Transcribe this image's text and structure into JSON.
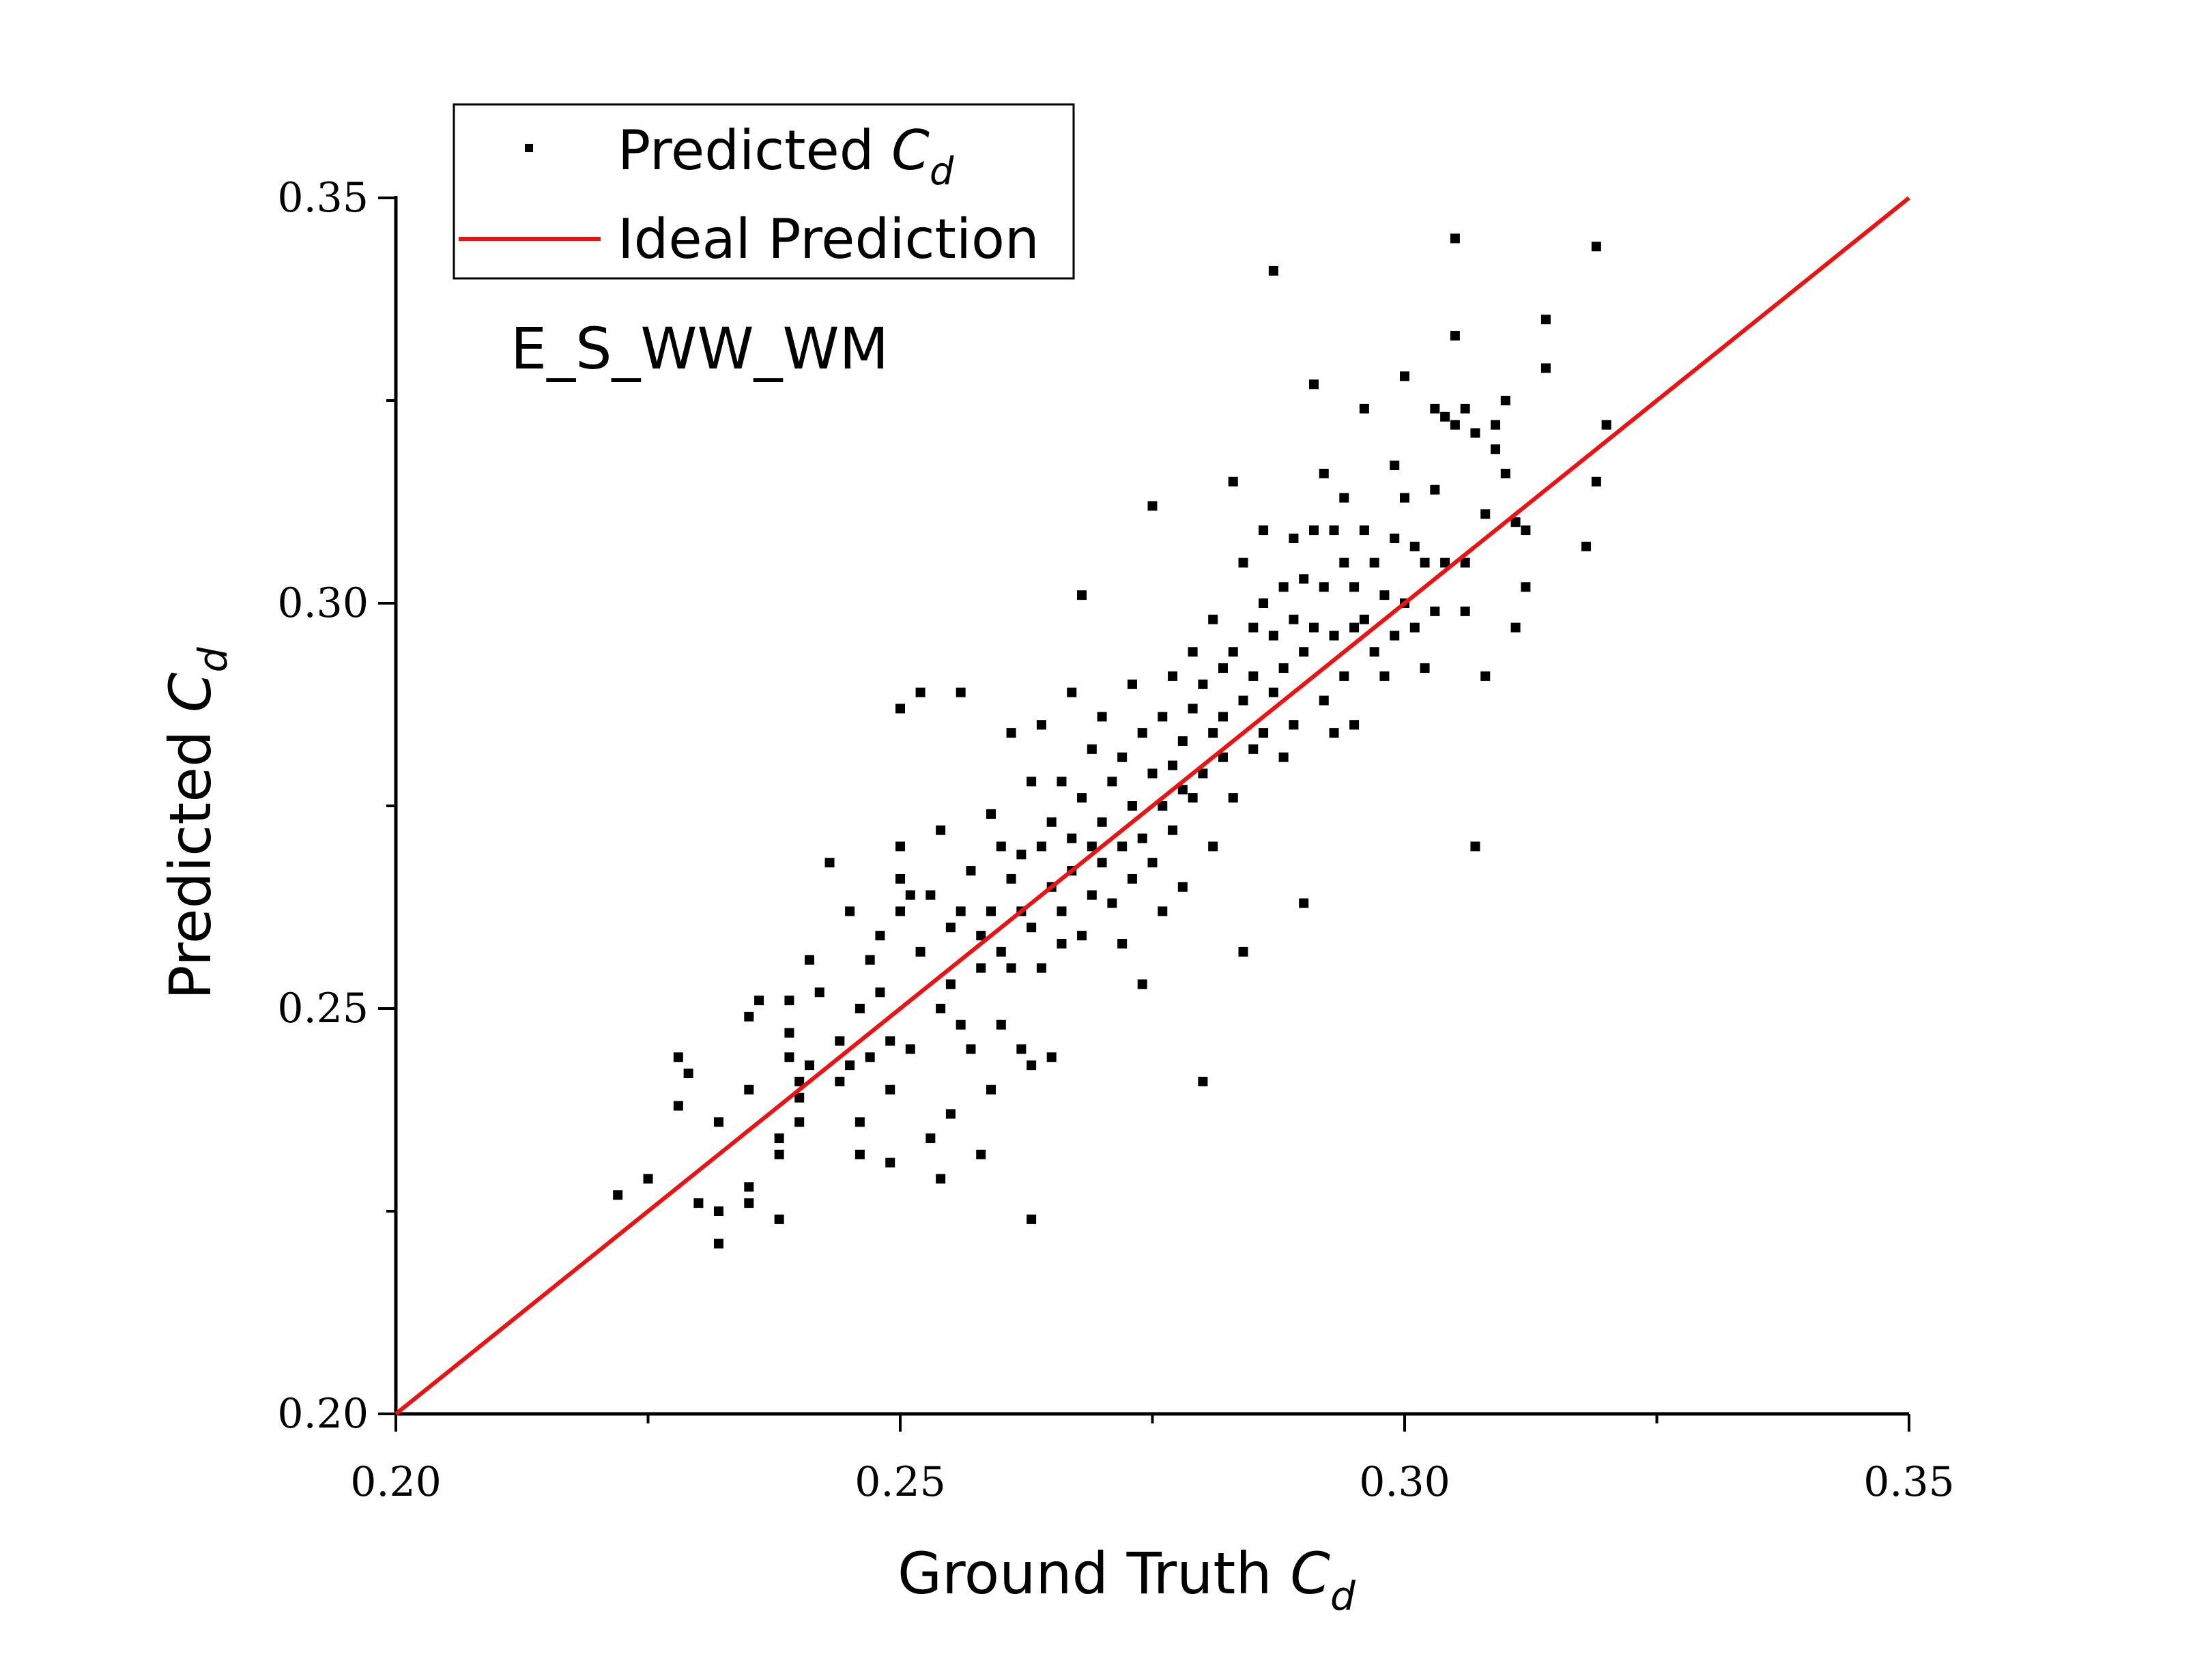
{
  "chart_data": {
    "type": "scatter",
    "annotation": "E_S_WW_WM",
    "xlabel": {
      "main": "Ground Truth ",
      "sym": "C",
      "sub": "d"
    },
    "ylabel": {
      "main": "Predicted ",
      "sym": "C",
      "sub": "d"
    },
    "xlim": [
      0.2,
      0.35
    ],
    "ylim": [
      0.2,
      0.35
    ],
    "xticks": [
      0.2,
      0.25,
      0.3,
      0.35
    ],
    "yticks": [
      0.2,
      0.25,
      0.3,
      0.35
    ],
    "xtick_labels": [
      "0.20",
      "0.25",
      "0.30",
      "0.35"
    ],
    "ytick_labels": [
      "0.20",
      "0.25",
      "0.30",
      "0.35"
    ],
    "grid": false,
    "legend": {
      "position": "top-left",
      "entries": [
        {
          "label": "Predicted ",
          "sym": "C",
          "sub": "d",
          "marker": "square",
          "color": "#000000"
        },
        {
          "label": "Ideal Prediction",
          "marker": "line",
          "color": "#ee1111"
        }
      ]
    },
    "series": [
      {
        "name": "Predicted Cd",
        "type": "scatter",
        "color": "#000000",
        "points": [
          [
            0.222,
            0.227
          ],
          [
            0.225,
            0.229
          ],
          [
            0.228,
            0.238
          ],
          [
            0.228,
            0.244
          ],
          [
            0.229,
            0.242
          ],
          [
            0.23,
            0.226
          ],
          [
            0.232,
            0.221
          ],
          [
            0.232,
            0.225
          ],
          [
            0.232,
            0.236
          ],
          [
            0.235,
            0.228
          ],
          [
            0.235,
            0.226
          ],
          [
            0.235,
            0.24
          ],
          [
            0.235,
            0.249
          ],
          [
            0.236,
            0.251
          ],
          [
            0.238,
            0.224
          ],
          [
            0.238,
            0.232
          ],
          [
            0.238,
            0.234
          ],
          [
            0.239,
            0.247
          ],
          [
            0.239,
            0.244
          ],
          [
            0.239,
            0.251
          ],
          [
            0.24,
            0.236
          ],
          [
            0.24,
            0.239
          ],
          [
            0.24,
            0.241
          ],
          [
            0.241,
            0.243
          ],
          [
            0.241,
            0.256
          ],
          [
            0.242,
            0.252
          ],
          [
            0.243,
            0.268
          ],
          [
            0.244,
            0.241
          ],
          [
            0.244,
            0.246
          ],
          [
            0.245,
            0.243
          ],
          [
            0.245,
            0.262
          ],
          [
            0.246,
            0.232
          ],
          [
            0.246,
            0.236
          ],
          [
            0.246,
            0.25
          ],
          [
            0.247,
            0.256
          ],
          [
            0.247,
            0.244
          ],
          [
            0.248,
            0.259
          ],
          [
            0.248,
            0.252
          ],
          [
            0.249,
            0.231
          ],
          [
            0.249,
            0.24
          ],
          [
            0.249,
            0.246
          ],
          [
            0.25,
            0.262
          ],
          [
            0.25,
            0.287
          ],
          [
            0.25,
            0.27
          ],
          [
            0.25,
            0.266
          ],
          [
            0.251,
            0.264
          ],
          [
            0.251,
            0.245
          ],
          [
            0.252,
            0.289
          ],
          [
            0.252,
            0.257
          ],
          [
            0.253,
            0.234
          ],
          [
            0.253,
            0.264
          ],
          [
            0.254,
            0.229
          ],
          [
            0.254,
            0.25
          ],
          [
            0.254,
            0.272
          ],
          [
            0.255,
            0.237
          ],
          [
            0.255,
            0.253
          ],
          [
            0.255,
            0.26
          ],
          [
            0.256,
            0.289
          ],
          [
            0.256,
            0.262
          ],
          [
            0.256,
            0.248
          ],
          [
            0.257,
            0.245
          ],
          [
            0.257,
            0.267
          ],
          [
            0.258,
            0.255
          ],
          [
            0.258,
            0.259
          ],
          [
            0.258,
            0.232
          ],
          [
            0.259,
            0.24
          ],
          [
            0.259,
            0.274
          ],
          [
            0.259,
            0.262
          ],
          [
            0.26,
            0.257
          ],
          [
            0.26,
            0.27
          ],
          [
            0.26,
            0.248
          ],
          [
            0.261,
            0.284
          ],
          [
            0.261,
            0.255
          ],
          [
            0.261,
            0.266
          ],
          [
            0.262,
            0.245
          ],
          [
            0.262,
            0.269
          ],
          [
            0.262,
            0.262
          ],
          [
            0.263,
            0.224
          ],
          [
            0.263,
            0.243
          ],
          [
            0.263,
            0.278
          ],
          [
            0.263,
            0.26
          ],
          [
            0.264,
            0.27
          ],
          [
            0.264,
            0.255
          ],
          [
            0.264,
            0.285
          ],
          [
            0.265,
            0.265
          ],
          [
            0.265,
            0.273
          ],
          [
            0.265,
            0.244
          ],
          [
            0.266,
            0.278
          ],
          [
            0.266,
            0.258
          ],
          [
            0.266,
            0.262
          ],
          [
            0.267,
            0.289
          ],
          [
            0.267,
            0.267
          ],
          [
            0.267,
            0.271
          ],
          [
            0.268,
            0.276
          ],
          [
            0.268,
            0.301
          ],
          [
            0.268,
            0.259
          ],
          [
            0.269,
            0.27
          ],
          [
            0.269,
            0.282
          ],
          [
            0.269,
            0.264
          ],
          [
            0.27,
            0.273
          ],
          [
            0.27,
            0.268
          ],
          [
            0.27,
            0.286
          ],
          [
            0.271,
            0.278
          ],
          [
            0.271,
            0.263
          ],
          [
            0.272,
            0.281
          ],
          [
            0.272,
            0.27
          ],
          [
            0.272,
            0.258
          ],
          [
            0.273,
            0.275
          ],
          [
            0.273,
            0.29
          ],
          [
            0.273,
            0.266
          ],
          [
            0.274,
            0.284
          ],
          [
            0.274,
            0.271
          ],
          [
            0.274,
            0.253
          ],
          [
            0.275,
            0.312
          ],
          [
            0.275,
            0.279
          ],
          [
            0.275,
            0.268
          ],
          [
            0.276,
            0.286
          ],
          [
            0.276,
            0.275
          ],
          [
            0.276,
            0.262
          ],
          [
            0.277,
            0.291
          ],
          [
            0.277,
            0.28
          ],
          [
            0.277,
            0.272
          ],
          [
            0.278,
            0.283
          ],
          [
            0.278,
            0.277
          ],
          [
            0.278,
            0.265
          ],
          [
            0.279,
            0.294
          ],
          [
            0.279,
            0.287
          ],
          [
            0.279,
            0.276
          ],
          [
            0.28,
            0.241
          ],
          [
            0.28,
            0.279
          ],
          [
            0.28,
            0.29
          ],
          [
            0.281,
            0.298
          ],
          [
            0.281,
            0.284
          ],
          [
            0.281,
            0.27
          ],
          [
            0.282,
            0.292
          ],
          [
            0.282,
            0.281
          ],
          [
            0.282,
            0.286
          ],
          [
            0.283,
            0.315
          ],
          [
            0.283,
            0.294
          ],
          [
            0.283,
            0.276
          ],
          [
            0.284,
            0.305
          ],
          [
            0.284,
            0.288
          ],
          [
            0.284,
            0.257
          ],
          [
            0.285,
            0.297
          ],
          [
            0.285,
            0.282
          ],
          [
            0.285,
            0.291
          ],
          [
            0.286,
            0.309
          ],
          [
            0.286,
            0.3
          ],
          [
            0.286,
            0.284
          ],
          [
            0.287,
            0.341
          ],
          [
            0.287,
            0.296
          ],
          [
            0.287,
            0.289
          ],
          [
            0.288,
            0.302
          ],
          [
            0.288,
            0.281
          ],
          [
            0.288,
            0.292
          ],
          [
            0.289,
            0.308
          ],
          [
            0.289,
            0.298
          ],
          [
            0.289,
            0.285
          ],
          [
            0.29,
            0.294
          ],
          [
            0.29,
            0.303
          ],
          [
            0.29,
            0.263
          ],
          [
            0.291,
            0.327
          ],
          [
            0.291,
            0.309
          ],
          [
            0.291,
            0.297
          ],
          [
            0.292,
            0.316
          ],
          [
            0.292,
            0.302
          ],
          [
            0.292,
            0.288
          ],
          [
            0.293,
            0.309
          ],
          [
            0.293,
            0.296
          ],
          [
            0.293,
            0.284
          ],
          [
            0.294,
            0.313
          ],
          [
            0.294,
            0.305
          ],
          [
            0.294,
            0.291
          ],
          [
            0.295,
            0.302
          ],
          [
            0.295,
            0.297
          ],
          [
            0.295,
            0.285
          ],
          [
            0.296,
            0.324
          ],
          [
            0.296,
            0.309
          ],
          [
            0.296,
            0.298
          ],
          [
            0.297,
            0.305
          ],
          [
            0.297,
            0.294
          ],
          [
            0.298,
            0.301
          ],
          [
            0.298,
            0.291
          ],
          [
            0.299,
            0.317
          ],
          [
            0.299,
            0.308
          ],
          [
            0.299,
            0.296
          ],
          [
            0.3,
            0.328
          ],
          [
            0.3,
            0.313
          ],
          [
            0.3,
            0.3
          ],
          [
            0.301,
            0.307
          ],
          [
            0.301,
            0.297
          ],
          [
            0.302,
            0.292
          ],
          [
            0.302,
            0.305
          ],
          [
            0.303,
            0.324
          ],
          [
            0.303,
            0.314
          ],
          [
            0.303,
            0.299
          ],
          [
            0.304,
            0.323
          ],
          [
            0.304,
            0.305
          ],
          [
            0.305,
            0.345
          ],
          [
            0.305,
            0.333
          ],
          [
            0.305,
            0.322
          ],
          [
            0.306,
            0.324
          ],
          [
            0.306,
            0.305
          ],
          [
            0.306,
            0.299
          ],
          [
            0.307,
            0.27
          ],
          [
            0.307,
            0.321
          ],
          [
            0.308,
            0.311
          ],
          [
            0.308,
            0.291
          ],
          [
            0.309,
            0.322
          ],
          [
            0.309,
            0.319
          ],
          [
            0.31,
            0.325
          ],
          [
            0.31,
            0.316
          ],
          [
            0.311,
            0.297
          ],
          [
            0.311,
            0.31
          ],
          [
            0.312,
            0.302
          ],
          [
            0.312,
            0.309
          ],
          [
            0.314,
            0.335
          ],
          [
            0.314,
            0.329
          ],
          [
            0.318,
            0.307
          ],
          [
            0.319,
            0.315
          ],
          [
            0.319,
            0.344
          ],
          [
            0.32,
            0.322
          ]
        ]
      },
      {
        "name": "Ideal Prediction",
        "type": "line",
        "color": "#ee1111",
        "x": [
          0.2,
          0.35
        ],
        "y": [
          0.2,
          0.35
        ]
      }
    ]
  }
}
